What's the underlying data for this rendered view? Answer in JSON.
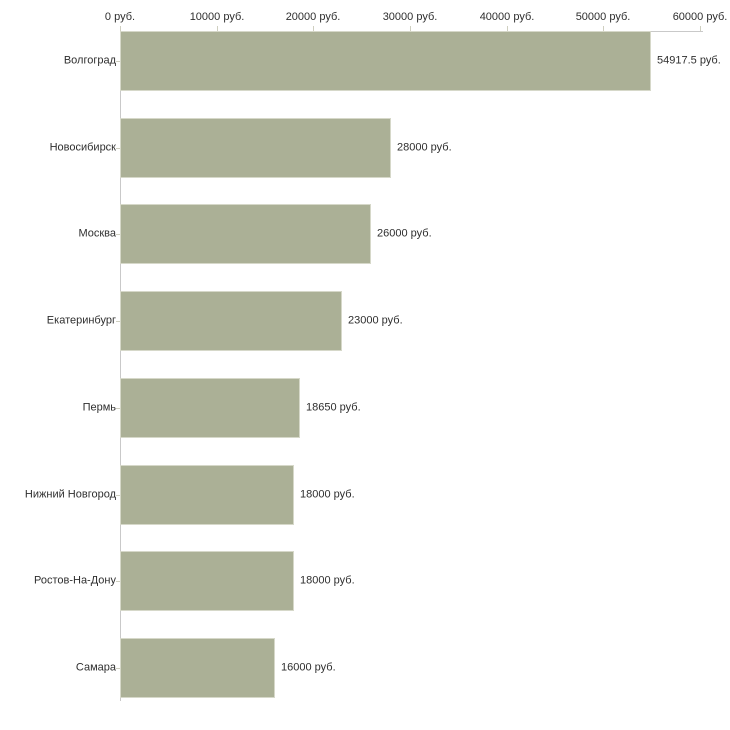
{
  "chart_data": {
    "type": "bar",
    "orientation": "horizontal",
    "title": "",
    "categories": [
      "Волгоград",
      "Новосибирск",
      "Москва",
      "Екатеринбург",
      "Пермь",
      "Нижний Новгород",
      "Ростов-На-Дону",
      "Самара"
    ],
    "values": [
      54917.5,
      28000,
      26000,
      23000,
      18650,
      18000,
      18000,
      16000
    ],
    "value_labels": [
      "54917.5 руб.",
      "28000 руб.",
      "26000 руб.",
      "23000 руб.",
      "18650 руб.",
      "18000 руб.",
      "18000 руб.",
      "16000 руб."
    ],
    "unit": "руб.",
    "x_axis": {
      "position": "top",
      "min": 0,
      "max": 60000,
      "ticks": [
        0,
        10000,
        20000,
        30000,
        40000,
        50000,
        60000
      ],
      "tick_labels": [
        "0 руб.",
        "10000 руб.",
        "20000 руб.",
        "30000 руб.",
        "40000 руб.",
        "50000 руб.",
        "60000 руб."
      ]
    },
    "grid": false,
    "legend": false,
    "colors": {
      "bar": "#abb096",
      "bar_border": "#d6d8c9",
      "axis": "#c9c9c9",
      "tick": "#cfcfc0",
      "text": "#2e2e2e",
      "background": "#ffffff"
    }
  }
}
